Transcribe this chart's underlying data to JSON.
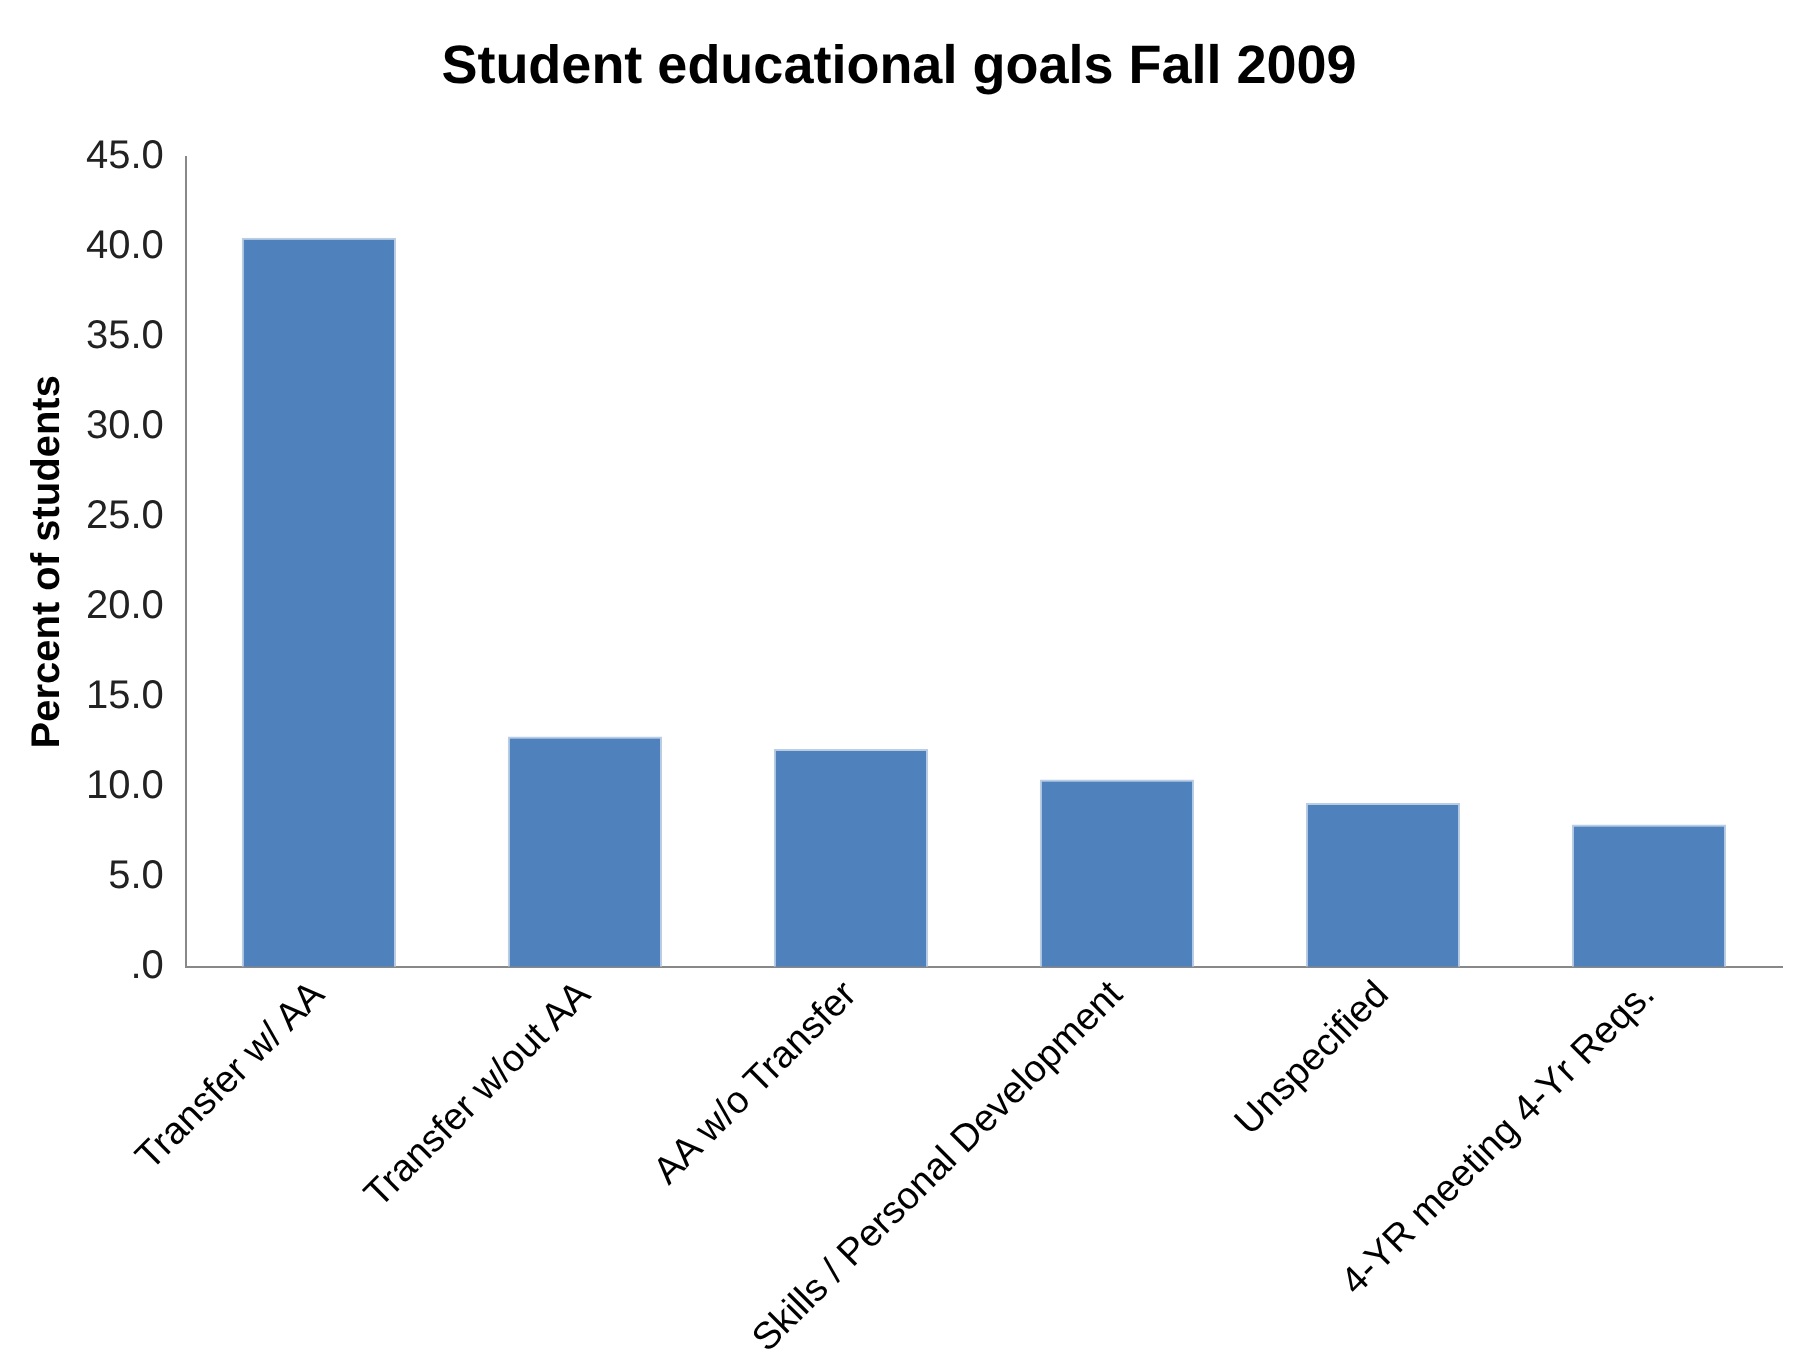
{
  "chart_data": {
    "type": "bar",
    "title": "Student educational goals Fall 2009",
    "ylabel": "Percent of students",
    "categories": [
      "Transfer w/ AA",
      "Transfer w/out AA",
      "AA w/o Transfer",
      "Skills / Personal Development",
      "Unspecified",
      "4-YR meeting 4-Yr Reqs."
    ],
    "values": [
      40.5,
      12.8,
      12.1,
      10.4,
      9.1,
      7.9
    ],
    "color": "#4f81bd",
    "ylim": [
      0,
      45
    ],
    "yticks": [
      {
        "value": 0,
        "label": ".0"
      },
      {
        "value": 5,
        "label": "5.0"
      },
      {
        "value": 10,
        "label": "10.0"
      },
      {
        "value": 15,
        "label": "15.0"
      },
      {
        "value": 20,
        "label": "20.0"
      },
      {
        "value": 25,
        "label": "25.0"
      },
      {
        "value": 30,
        "label": "30.0"
      },
      {
        "value": 35,
        "label": "35.0"
      },
      {
        "value": 40,
        "label": "40.0"
      },
      {
        "value": 45,
        "label": "45.0"
      }
    ],
    "grid": false,
    "legend": false
  }
}
